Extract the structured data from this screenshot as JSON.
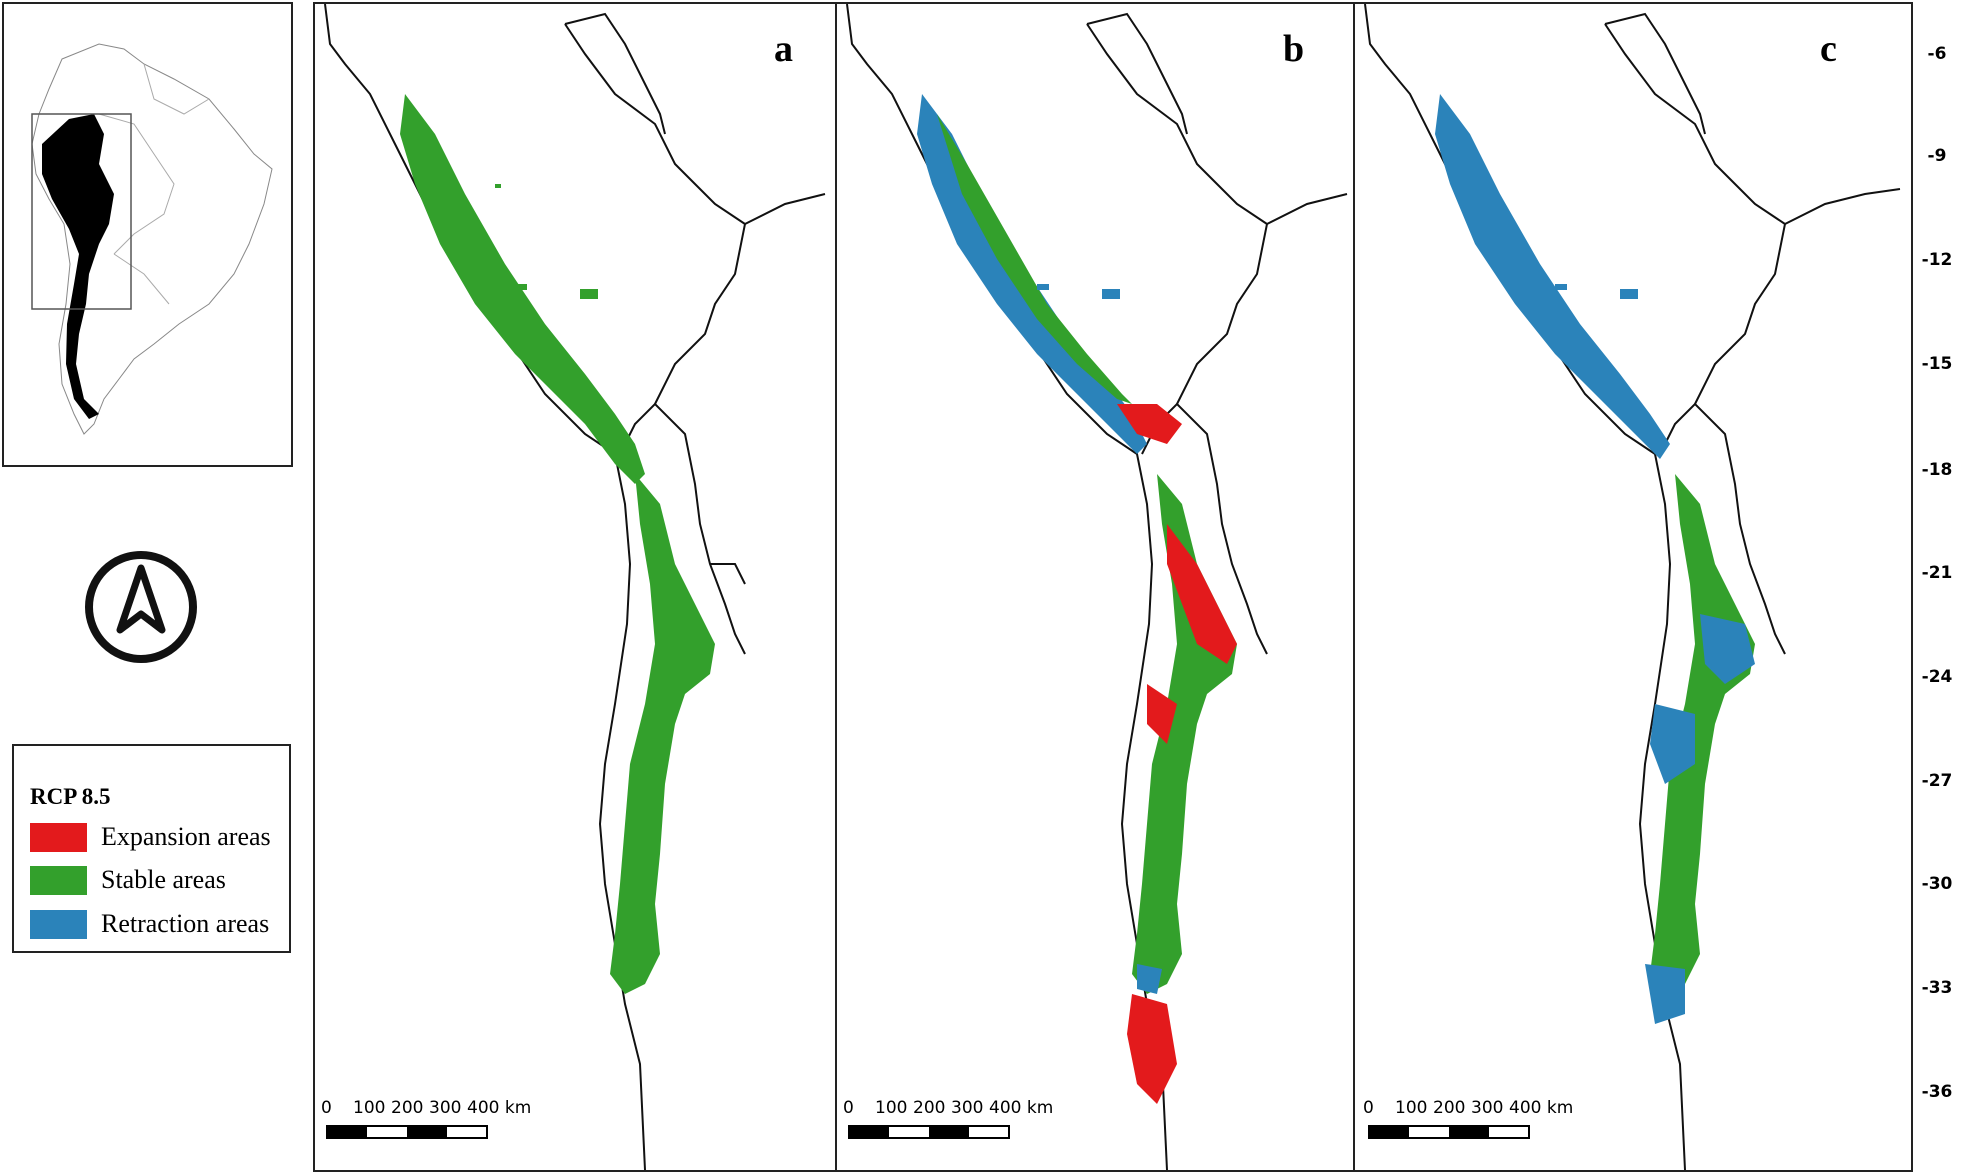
{
  "panels": [
    {
      "letter": "a"
    },
    {
      "letter": "b"
    },
    {
      "letter": "c"
    }
  ],
  "scale_bar": {
    "labels": [
      "0",
      "100",
      "200",
      "300",
      "400 km"
    ]
  },
  "legend": {
    "title": "RCP 8.5",
    "items": [
      {
        "label": "Expansion areas",
        "color": "#e31a1c"
      },
      {
        "label": "Stable areas",
        "color": "#33a02c"
      },
      {
        "label": "Retraction areas",
        "color": "#2b83ba"
      }
    ]
  },
  "latitude_ticks": [
    "-6",
    "-9",
    "-12",
    "-15",
    "-18",
    "-21",
    "-24",
    "-27",
    "-30",
    "-33",
    "-36"
  ],
  "colors": {
    "expansion": "#e31a1c",
    "stable": "#33a02c",
    "retraction": "#2b83ba",
    "frame": "#222222",
    "inset_highlight": "#000000"
  },
  "icons": {
    "north_arrow": "north-arrow-icon"
  }
}
